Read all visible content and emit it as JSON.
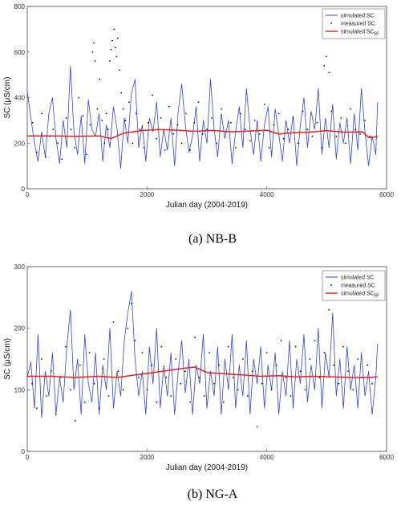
{
  "chart_data": [
    {
      "type": "line",
      "caption": "(a)  NB-B",
      "xlabel": "Julian day (2004-2019)",
      "ylabel": "SC (μS/cm)",
      "xlim": [
        0,
        6000
      ],
      "ylim": [
        0,
        800
      ],
      "xticks": [
        0,
        2000,
        4000,
        6000
      ],
      "yticks": [
        0,
        200,
        400,
        600,
        800
      ],
      "legend_position": "top-right",
      "grid": false,
      "series": [
        {
          "name": "simulated SC",
          "style": "line",
          "color": "#3344cc",
          "x": [
            0,
            60,
            120,
            180,
            240,
            300,
            360,
            420,
            480,
            540,
            600,
            660,
            720,
            780,
            840,
            900,
            960,
            1020,
            1080,
            1140,
            1200,
            1260,
            1320,
            1380,
            1440,
            1500,
            1560,
            1620,
            1680,
            1740,
            1800,
            1860,
            1920,
            1980,
            2040,
            2100,
            2160,
            2220,
            2280,
            2340,
            2400,
            2460,
            2520,
            2580,
            2640,
            2700,
            2760,
            2820,
            2880,
            2940,
            3000,
            3060,
            3120,
            3180,
            3240,
            3300,
            3360,
            3420,
            3480,
            3540,
            3600,
            3660,
            3720,
            3780,
            3840,
            3900,
            3960,
            4020,
            4080,
            4140,
            4200,
            4260,
            4320,
            4380,
            4440,
            4500,
            4560,
            4620,
            4680,
            4740,
            4800,
            4860,
            4920,
            4980,
            5040,
            5100,
            5160,
            5220,
            5280,
            5340,
            5400,
            5460,
            5520,
            5580,
            5640,
            5700,
            5760,
            5820,
            5850
          ],
          "y": [
            430,
            310,
            200,
            120,
            250,
            140,
            330,
            400,
            220,
            110,
            300,
            180,
            540,
            250,
            150,
            320,
            110,
            390,
            260,
            230,
            330,
            120,
            280,
            180,
            360,
            260,
            90,
            310,
            200,
            420,
            480,
            180,
            280,
            120,
            310,
            250,
            380,
            140,
            260,
            170,
            310,
            100,
            340,
            460,
            280,
            160,
            230,
            360,
            120,
            300,
            200,
            480,
            260,
            140,
            330,
            220,
            300,
            110,
            250,
            360,
            180,
            440,
            260,
            150,
            300,
            120,
            280,
            360,
            140,
            350,
            240,
            120,
            300,
            200,
            320,
            100,
            280,
            400,
            180,
            340,
            260,
            440,
            150,
            310,
            180,
            370,
            130,
            290,
            200,
            310,
            110,
            330,
            170,
            440,
            250,
            100,
            230,
            150,
            380
          ]
        },
        {
          "name": "measured SC",
          "style": "points",
          "color": "#111111",
          "x": [
            90,
            160,
            240,
            310,
            380,
            430,
            510,
            580,
            650,
            730,
            790,
            860,
            930,
            990,
            1050,
            1090,
            1110,
            1130,
            1170,
            1210,
            1250,
            1290,
            1320,
            1350,
            1380,
            1400,
            1420,
            1450,
            1470,
            1490,
            1510,
            1540,
            1570,
            1600,
            1640,
            1700,
            1760,
            1820,
            1880,
            1950,
            2020,
            2090,
            2160,
            2230,
            2300,
            2370,
            2440,
            2510,
            2580,
            2650,
            2720,
            2790,
            2860,
            2930,
            3000,
            3080,
            3160,
            3240,
            3320,
            3400,
            3480,
            3560,
            3640,
            3720,
            3800,
            3880,
            3960,
            4040,
            4120,
            4200,
            4280,
            4360,
            4440,
            4520,
            4600,
            4680,
            4760,
            4840,
            4920,
            4960,
            5000,
            5040,
            5080,
            5160,
            5240,
            5320,
            5400,
            5480,
            5560,
            5640,
            5720
          ],
          "y": [
            290,
            160,
            330,
            140,
            230,
            260,
            200,
            130,
            310,
            260,
            180,
            400,
            320,
            150,
            280,
            600,
            640,
            560,
            350,
            480,
            300,
            200,
            330,
            260,
            560,
            610,
            650,
            700,
            620,
            580,
            660,
            520,
            420,
            350,
            300,
            380,
            200,
            330,
            260,
            180,
            290,
            410,
            220,
            310,
            170,
            360,
            240,
            280,
            200,
            330,
            170,
            290,
            380,
            240,
            260,
            310,
            200,
            350,
            250,
            290,
            180,
            330,
            260,
            210,
            300,
            240,
            370,
            180,
            280,
            330,
            220,
            260,
            310,
            200,
            340,
            260,
            230,
            290,
            180,
            540,
            580,
            510,
            340,
            230,
            310,
            200,
            350,
            260,
            240,
            300,
            230
          ]
        },
        {
          "name": "simulated SC",
          "name_subscript": "BF",
          "style": "line",
          "color": "#e0231f",
          "x": [
            0,
            400,
            800,
            1200,
            1400,
            1600,
            1900,
            2200,
            2500,
            2800,
            3100,
            3400,
            3700,
            4000,
            4200,
            4400,
            4700,
            5000,
            5300,
            5600,
            5700,
            5850
          ],
          "y": [
            232,
            232,
            230,
            232,
            220,
            243,
            255,
            260,
            257,
            252,
            256,
            250,
            253,
            257,
            240,
            245,
            248,
            255,
            248,
            250,
            225,
            228
          ]
        }
      ]
    },
    {
      "type": "line",
      "caption": "(b)  NG-A",
      "xlabel": "Julian day (2004-2019)",
      "ylabel": "SC (μS/cm)",
      "xlim": [
        0,
        6000
      ],
      "ylim": [
        0,
        300
      ],
      "xticks": [
        0,
        2000,
        4000,
        6000
      ],
      "yticks": [
        0,
        100,
        200,
        300
      ],
      "legend_position": "top-right",
      "grid": false,
      "series": [
        {
          "name": "simulated SC",
          "style": "line",
          "color": "#3344cc",
          "x": [
            0,
            60,
            120,
            180,
            240,
            300,
            360,
            420,
            480,
            540,
            600,
            660,
            720,
            780,
            840,
            900,
            960,
            1020,
            1080,
            1140,
            1200,
            1260,
            1320,
            1380,
            1440,
            1500,
            1560,
            1620,
            1680,
            1740,
            1800,
            1860,
            1920,
            1980,
            2040,
            2100,
            2160,
            2220,
            2280,
            2340,
            2400,
            2460,
            2520,
            2580,
            2640,
            2700,
            2760,
            2820,
            2880,
            2940,
            3000,
            3060,
            3120,
            3180,
            3240,
            3300,
            3360,
            3420,
            3480,
            3540,
            3600,
            3660,
            3720,
            3780,
            3840,
            3900,
            3960,
            4020,
            4080,
            4140,
            4200,
            4260,
            4320,
            4380,
            4440,
            4500,
            4560,
            4620,
            4680,
            4740,
            4800,
            4860,
            4920,
            4980,
            5040,
            5100,
            5160,
            5220,
            5280,
            5340,
            5400,
            5460,
            5520,
            5580,
            5640,
            5700,
            5760,
            5820,
            5850
          ],
          "y": [
            120,
            145,
            70,
            190,
            55,
            130,
            90,
            160,
            60,
            120,
            80,
            170,
            230,
            100,
            150,
            60,
            190,
            110,
            80,
            160,
            60,
            140,
            100,
            200,
            70,
            130,
            90,
            180,
            225,
            260,
            150,
            90,
            130,
            60,
            170,
            110,
            200,
            70,
            140,
            90,
            160,
            60,
            130,
            180,
            95,
            150,
            60,
            140,
            110,
            190,
            70,
            130,
            90,
            170,
            60,
            150,
            100,
            190,
            70,
            140,
            90,
            180,
            60,
            150,
            110,
            170,
            70,
            140,
            100,
            160,
            60,
            130,
            90,
            180,
            70,
            150,
            110,
            190,
            80,
            140,
            100,
            200,
            70,
            160,
            120,
            225,
            90,
            150,
            70,
            170,
            100,
            140,
            70,
            160,
            90,
            130,
            60,
            120,
            175
          ]
        },
        {
          "name": "measured SC",
          "style": "points",
          "color": "#111111",
          "x": [
            80,
            160,
            240,
            320,
            400,
            480,
            560,
            640,
            720,
            800,
            880,
            960,
            1040,
            1120,
            1200,
            1280,
            1360,
            1440,
            1520,
            1600,
            1680,
            1740,
            1800,
            1860,
            1920,
            2000,
            2080,
            2160,
            2240,
            2320,
            2400,
            2480,
            2560,
            2640,
            2720,
            2800,
            2880,
            2960,
            3040,
            3120,
            3200,
            3280,
            3360,
            3440,
            3520,
            3600,
            3680,
            3760,
            3840,
            3920,
            4000,
            4080,
            4160,
            4240,
            4320,
            4400,
            4480,
            4560,
            4640,
            4720,
            4800,
            4880,
            4960,
            5040,
            5120,
            5200,
            5280,
            5360,
            5440,
            5520,
            5600,
            5680,
            5760
          ],
          "y": [
            110,
            70,
            150,
            90,
            130,
            60,
            120,
            170,
            100,
            50,
            140,
            80,
            160,
            110,
            70,
            150,
            90,
            210,
            130,
            100,
            200,
            240,
            180,
            120,
            160,
            100,
            140,
            80,
            170,
            120,
            90,
            150,
            110,
            130,
            80,
            185,
            120,
            90,
            160,
            110,
            140,
            80,
            170,
            120,
            100,
            150,
            90,
            130,
            40,
            110,
            160,
            100,
            140,
            180,
            120,
            90,
            170,
            130,
            100,
            150,
            180,
            120,
            160,
            230,
            140,
            110,
            170,
            130,
            100,
            150,
            120,
            140,
            110
          ]
        },
        {
          "name": "simulated SC",
          "name_subscript": "BF",
          "style": "line",
          "color": "#e0231f",
          "x": [
            0,
            400,
            800,
            1200,
            1500,
            1800,
            2100,
            2400,
            2700,
            2800,
            3000,
            3300,
            3600,
            3900,
            4200,
            4500,
            4800,
            5100,
            5400,
            5700,
            5850
          ],
          "y": [
            122,
            122,
            120,
            122,
            120,
            124,
            128,
            132,
            136,
            137,
            128,
            126,
            124,
            122,
            123,
            121,
            122,
            121,
            120,
            120,
            121
          ]
        }
      ]
    }
  ]
}
